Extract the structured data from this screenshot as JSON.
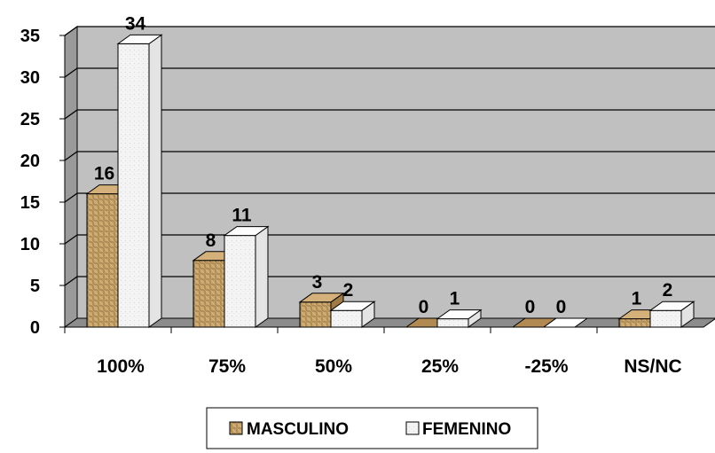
{
  "chart_data": {
    "type": "bar",
    "categories": [
      "100%",
      "75%",
      "50%",
      "25%",
      "-25%",
      "NS/NC"
    ],
    "series": [
      {
        "name": "MASCULINO",
        "values": [
          16,
          8,
          3,
          0,
          0,
          1
        ],
        "color": "#c9a46a"
      },
      {
        "name": "FEMENINO",
        "values": [
          34,
          11,
          2,
          1,
          0,
          2
        ],
        "color": "#f2f2f2"
      }
    ],
    "yticks": [
      "0",
      "5",
      "10",
      "15",
      "20",
      "25",
      "30",
      "35"
    ],
    "ylim": [
      0,
      35
    ],
    "grid": true,
    "style": "3d",
    "legend_position": "bottom",
    "wall_color": "#c0c0c0"
  }
}
